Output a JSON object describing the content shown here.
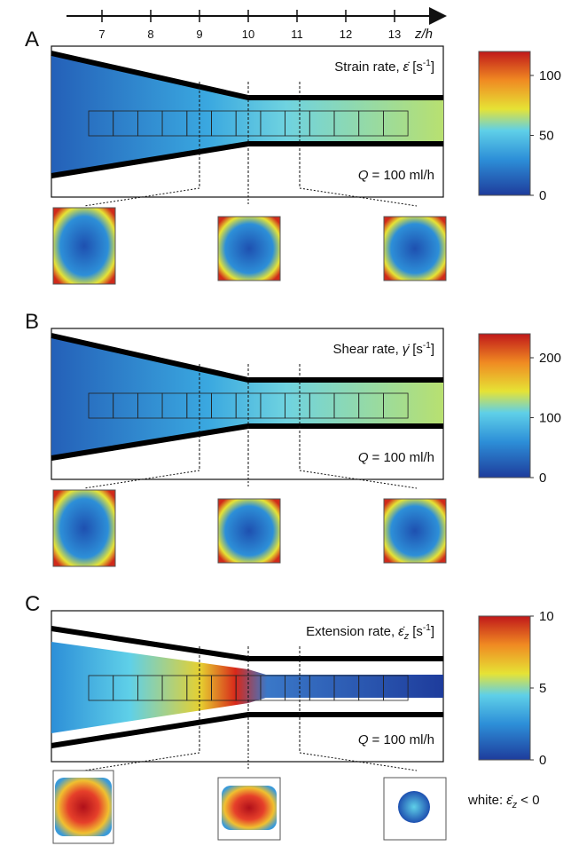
{
  "axis": {
    "label": "z/h",
    "ticks": [
      7,
      8,
      9,
      10,
      11,
      12,
      13
    ]
  },
  "panels": [
    {
      "letter": "A",
      "title": {
        "text": "Strain rate,",
        "symbol": "ε̇",
        "unit": "[s",
        "exponent": "-1",
        "close": "]"
      },
      "flow": {
        "symbol": "Q",
        "text": "= 100 ml/h"
      },
      "colorbar": {
        "lim": [
          0,
          120
        ],
        "ticks": [
          0,
          50,
          100
        ]
      }
    },
    {
      "letter": "B",
      "title": {
        "text": "Shear rate,",
        "symbol": "γ̇",
        "unit": "[s",
        "exponent": "-1",
        "close": "]"
      },
      "flow": {
        "symbol": "Q",
        "text": "= 100 ml/h"
      },
      "colorbar": {
        "lim": [
          0,
          240
        ],
        "ticks": [
          0,
          100,
          200
        ]
      }
    },
    {
      "letter": "C",
      "title": {
        "text": "Extension rate,",
        "symbol": "ε̇",
        "subscript": "z",
        "unit": "[s",
        "exponent": "-1",
        "close": "]"
      },
      "flow": {
        "symbol": "Q",
        "text": "= 100 ml/h"
      },
      "colorbar": {
        "lim": [
          0,
          10
        ],
        "ticks": [
          0,
          5,
          10
        ]
      }
    }
  ],
  "note": {
    "text": "white:",
    "symbol": "ε̇",
    "subscript": "z",
    "relation": "< 0"
  }
}
